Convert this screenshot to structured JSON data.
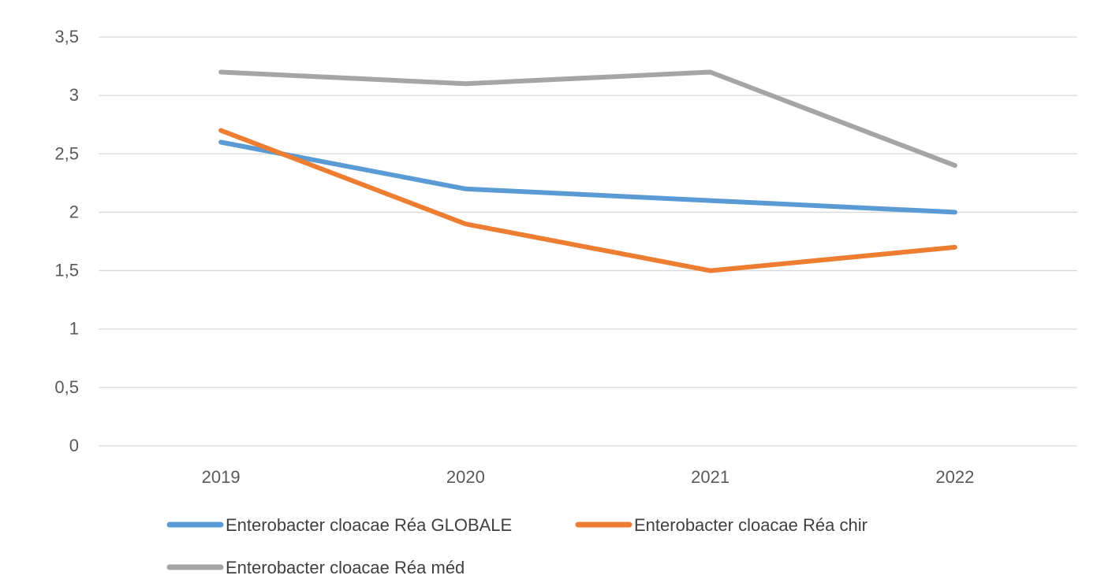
{
  "chart_data": {
    "type": "line",
    "title": "",
    "xlabel": "",
    "ylabel": "",
    "categories": [
      "2019",
      "2020",
      "2021",
      "2022"
    ],
    "ylim": [
      0,
      3.5
    ],
    "y_ticks": [
      "0",
      "0,5",
      "1",
      "1,5",
      "2",
      "2,5",
      "3",
      "3,5"
    ],
    "grid": "horizontal",
    "legend_position": "bottom",
    "series": [
      {
        "name": "Enterobacter cloacae  Réa GLOBALE",
        "color": "#5B9BD5",
        "values": [
          2.6,
          2.2,
          2.1,
          2.0
        ]
      },
      {
        "name": "Enterobacter cloacae  Réa chir",
        "color": "#ED7D31",
        "values": [
          2.7,
          1.9,
          1.5,
          1.7
        ]
      },
      {
        "name": "Enterobacter cloacae  Réa méd",
        "color": "#A5A5A5",
        "values": [
          3.2,
          3.1,
          3.2,
          2.4
        ]
      }
    ]
  }
}
